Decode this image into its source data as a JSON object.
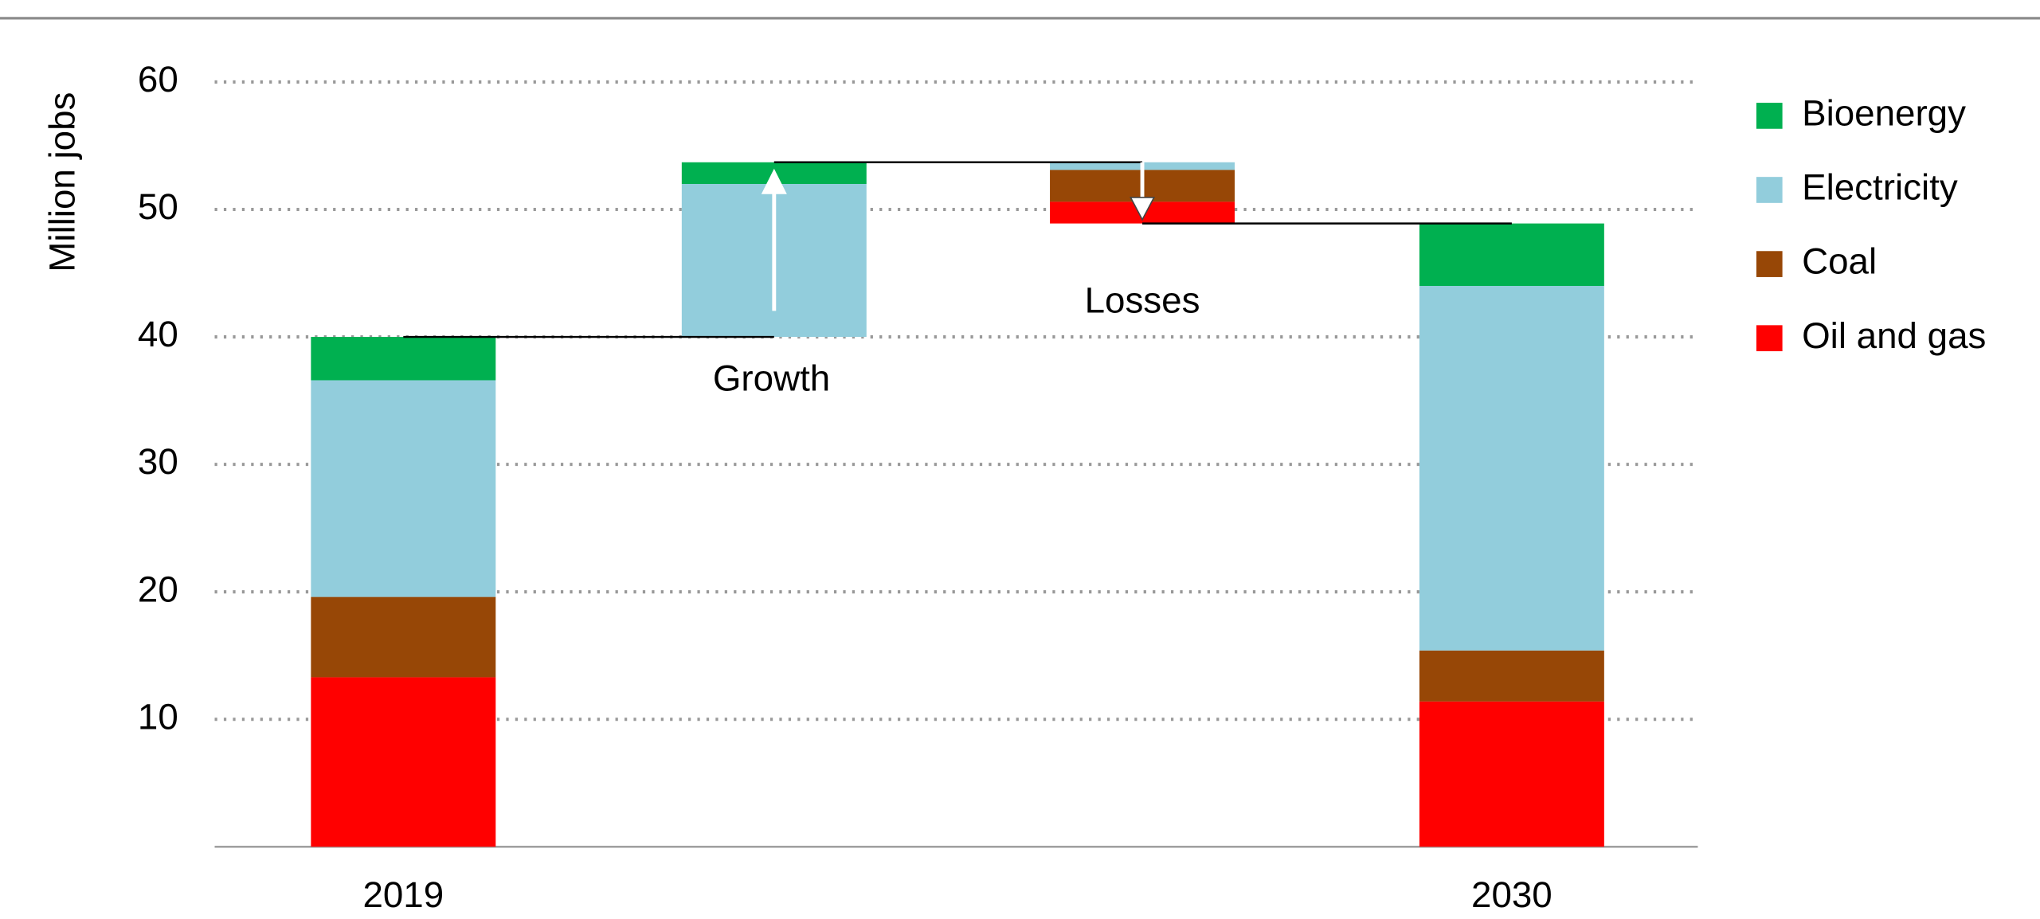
{
  "chart_data": {
    "type": "waterfall",
    "categories": [
      "2019",
      null,
      null,
      "2030"
    ],
    "series": [
      {
        "name": "Oil and gas",
        "color": "#ff0000",
        "values": [
          13.3,
          null,
          -1.7,
          11.4
        ]
      },
      {
        "name": "Coal",
        "color": "#974706",
        "values": [
          6.3,
          null,
          -2.5,
          4.0
        ]
      },
      {
        "name": "Electricity",
        "color": "#92cddc",
        "values": [
          17.0,
          12.0,
          -0.6,
          28.6
        ]
      },
      {
        "name": "Bioenergy",
        "color": "#00b050",
        "values": [
          3.4,
          1.7,
          null,
          4.9
        ]
      }
    ],
    "y_label": "Million jobs",
    "annotations": [
      "Growth",
      "Losses"
    ],
    "ylim": [
      0,
      60
    ],
    "yticks": [
      10,
      20,
      30,
      40,
      50,
      60
    ],
    "grid": true,
    "legend": "right"
  }
}
